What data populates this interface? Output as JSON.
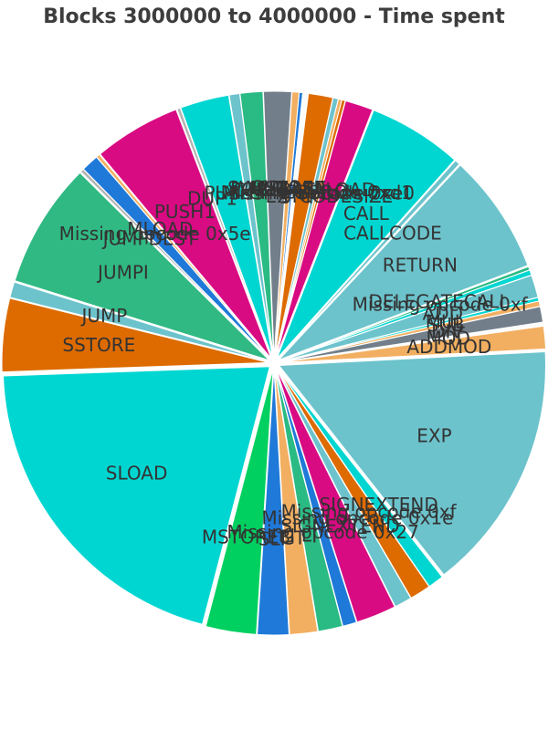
{
  "chart_data": {
    "type": "pie",
    "title": "Blocks 3000000 to 4000000 - Time spent",
    "slices": [
      {
        "label": "SSTORE",
        "value": 4.2,
        "color": "#dd6b00"
      },
      {
        "label": "JUMP",
        "value": 0.9,
        "color": "#6cc3cc"
      },
      {
        "label": "JUMPI",
        "value": 7.2,
        "color": "#30b983"
      },
      {
        "label": "JUMPDEST",
        "value": 0.2,
        "color": "#b5b5b5"
      },
      {
        "label": "Missing opcode 0x5e",
        "value": 1.0,
        "color": "#1f79d8"
      },
      {
        "label": "MLOAD",
        "value": 0.2,
        "color": "#f2af61"
      },
      {
        "label": "PUSH1",
        "value": 5.0,
        "color": "#d90b82"
      },
      {
        "label": "DUP1",
        "value": 0.2,
        "color": "#b5b5b5"
      },
      {
        "label": "PUSH",
        "value": 2.8,
        "color": "#00d6d1"
      },
      {
        "label": "POP",
        "value": 0.6,
        "color": "#6cc3cc"
      },
      {
        "label": "SWAP1",
        "value": 1.3,
        "color": "#2aba83"
      },
      {
        "label": "SHA3",
        "value": 1.6,
        "color": "#727f8b"
      },
      {
        "label": "MSTORE",
        "value": 0.4,
        "color": "#f2af61"
      },
      {
        "label": "CALLER",
        "value": 0.2,
        "color": "#1f79d8"
      },
      {
        "label": "GAS",
        "value": 0.3,
        "color": "#fbfbfb"
      },
      {
        "label": "CALLDATALOAD",
        "value": 1.4,
        "color": "#dd6b00"
      },
      {
        "label": "ISZERO",
        "value": 0.3,
        "color": "#6cc3cc"
      },
      {
        "label": "Missing opcode 0xd1",
        "value": 0.2,
        "color": "#f2af61"
      },
      {
        "label": "Missing opcode 0xe0",
        "value": 0.2,
        "color": "#dd6b00"
      },
      {
        "label": "EXTCODESIZE",
        "value": 1.6,
        "color": "#d90b82"
      },
      {
        "label": "CALL",
        "value": 5.4,
        "color": "#00d6d1"
      },
      {
        "label": "CALLCODE",
        "value": 0.3,
        "color": "#6cc3cc"
      },
      {
        "label": "RETURN",
        "value": 6.9,
        "color": "#6cc3cc"
      },
      {
        "label": "DELEGATECALL",
        "value": 0.2,
        "color": "#2aba83"
      },
      {
        "label": "Missing opcode 0xf",
        "value": 0.3,
        "color": "#00d6d1"
      },
      {
        "label": "ADD",
        "value": 1.3,
        "color": "#6cc3cc"
      },
      {
        "label": "MUL",
        "value": 0.2,
        "color": "#00d6d1"
      },
      {
        "label": "SUB",
        "value": 0.3,
        "color": "#f2af61"
      },
      {
        "label": "DIV",
        "value": 0.9,
        "color": "#727f8b"
      },
      {
        "label": "MOD",
        "value": 0.2,
        "color": "#fbfbfb"
      },
      {
        "label": "ADDMOD",
        "value": 1.3,
        "color": "#f2af61"
      },
      {
        "label": "EXP",
        "value": 14.4,
        "color": "#6cc3cc"
      },
      {
        "label": "SIGNEXTEND",
        "value": 0.9,
        "color": "#00d6d1"
      },
      {
        "label": "Missing opcode 0xf",
        "value": 1.2,
        "color": "#dd6b00"
      },
      {
        "label": "Missing opcode 0x1e",
        "value": 1.0,
        "color": "#6cc3cc"
      },
      {
        "label": "SIGNEXTEND",
        "value": 2.3,
        "color": "#d90b82"
      },
      {
        "label": "Missing opcode 0x27",
        "value": 0.8,
        "color": "#1f79d8"
      },
      {
        "label": "LT",
        "value": 1.4,
        "color": "#2aba83"
      },
      {
        "label": "GT",
        "value": 1.6,
        "color": "#f2af61"
      },
      {
        "label": "SLT",
        "value": 1.8,
        "color": "#1f79d8"
      },
      {
        "label": "MSTORE8",
        "value": 2.9,
        "color": "#00d060"
      },
      {
        "label": "SLOAD",
        "value": 19.3,
        "color": "#00d6d1"
      }
    ]
  }
}
